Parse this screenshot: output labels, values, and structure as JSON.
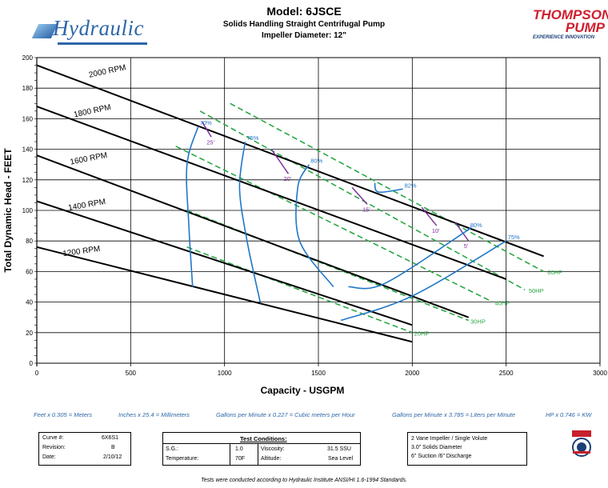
{
  "header": {
    "brand_left": "Hydraulic",
    "model": "Model:  6JSCE",
    "subtitle": "Solids Handling Straight Centrifugal Pump",
    "impeller": "Impeller Diameter: 12\"",
    "brand_right_line1": "THOMPSON",
    "brand_right_line2": "PUMP",
    "brand_right_tagline": "EXPERIENCE INNOVATION"
  },
  "conversions": [
    "Feet x 0.305 = Meters",
    "Inches x 25.4 = Millimeters",
    "Gallons per Minute x 0.227 = Cubic meters per Hour",
    "Gallons per Minute x 3.785 = Liters per Minute",
    "HP x 0.746 = KW"
  ],
  "curve_box": {
    "rows": [
      {
        "label": "Curve #:",
        "value": "6X6S1"
      },
      {
        "label": "Revision:",
        "value": "B"
      },
      {
        "label": "Date:",
        "value": "2/10/12"
      }
    ]
  },
  "test_conditions": {
    "title": "Test Conditions:",
    "sg_label": "S.G.:",
    "sg_value": "1.0",
    "viscosity_label": "Viscosity:",
    "viscosity_value": "31.5 SSU",
    "temp_label": "Temperature:",
    "temp_value": "70F",
    "altitude_label": "Altitude:",
    "altitude_value": "Sea Level"
  },
  "impeller_info": [
    "2 Vane Impeller / Single Volute",
    "3.0\" Solids Diameter",
    "6\" Suction /6\" Discharge"
  ],
  "footer": "Tests were conducted according to Hydraulic Institute ANSI/HI 1.6-1994 Standards.",
  "chart_data": {
    "type": "line",
    "xlabel": "Capacity - USGPM",
    "ylabel": "Total Dynamic Head - FEET",
    "xlim": [
      0,
      3000
    ],
    "ylim": [
      0,
      200
    ],
    "x_ticks": [
      0,
      500,
      1000,
      1500,
      2000,
      2500,
      3000
    ],
    "y_ticks": [
      0,
      20,
      40,
      60,
      80,
      100,
      120,
      140,
      160,
      180,
      200
    ],
    "grid": "horizontal",
    "colors": {
      "speed": "#000000",
      "efficiency": "#1f77c8",
      "hp": "#2aa845",
      "npsh": "#7b2d9e"
    },
    "speed_curves": [
      {
        "name": "2000 RPM",
        "points": [
          [
            0,
            195
          ],
          [
            2700,
            70
          ]
        ]
      },
      {
        "name": "1800 RPM",
        "points": [
          [
            0,
            168
          ],
          [
            2500,
            55
          ]
        ]
      },
      {
        "name": "1600 RPM",
        "points": [
          [
            0,
            136
          ],
          [
            2300,
            30
          ]
        ]
      },
      {
        "name": "1400 RPM",
        "points": [
          [
            0,
            106
          ],
          [
            2000,
            25
          ]
        ]
      },
      {
        "name": "1200 RPM",
        "points": [
          [
            0,
            76
          ],
          [
            2000,
            14
          ]
        ]
      }
    ],
    "efficiency_curves": [
      {
        "name": "70%",
        "points": [
          [
            830,
            50
          ],
          [
            810,
            90
          ],
          [
            800,
            130
          ],
          [
            860,
            155
          ]
        ]
      },
      {
        "name": "75%",
        "points": [
          [
            1190,
            40
          ],
          [
            1120,
            80
          ],
          [
            1080,
            115
          ],
          [
            1110,
            145
          ]
        ]
      },
      {
        "name": "80%",
        "points": [
          [
            1580,
            50
          ],
          [
            1400,
            80
          ],
          [
            1390,
            115
          ],
          [
            1450,
            130
          ]
        ]
      },
      {
        "name": "82%",
        "points": [
          [
            1800,
            118
          ],
          [
            1820,
            112
          ],
          [
            1950,
            114
          ]
        ]
      },
      {
        "name": "80%",
        "points": [
          [
            1660,
            50
          ],
          [
            1850,
            52
          ],
          [
            2270,
            85
          ],
          [
            2300,
            88
          ]
        ]
      },
      {
        "name": "75%",
        "points": [
          [
            1620,
            28
          ],
          [
            2000,
            44
          ],
          [
            2500,
            80
          ]
        ]
      }
    ],
    "hp_curves": [
      {
        "name": "60HP",
        "points": [
          [
            1030,
            170
          ],
          [
            2700,
            60
          ]
        ]
      },
      {
        "name": "50HP",
        "points": [
          [
            870,
            165
          ],
          [
            2600,
            48
          ]
        ]
      },
      {
        "name": "40HP",
        "points": [
          [
            740,
            142
          ],
          [
            2430,
            40
          ]
        ]
      },
      {
        "name": "30HP",
        "points": [
          [
            800,
            100
          ],
          [
            2300,
            28
          ]
        ]
      },
      {
        "name": "20HP",
        "points": [
          [
            800,
            76
          ],
          [
            2000,
            20
          ]
        ]
      }
    ],
    "npsh_curves": [
      {
        "name": "25'",
        "points": [
          [
            880,
            158
          ],
          [
            930,
            148
          ]
        ]
      },
      {
        "name": "20'",
        "points": [
          [
            1250,
            140
          ],
          [
            1340,
            124
          ]
        ]
      },
      {
        "name": "15'",
        "points": [
          [
            1680,
            115
          ],
          [
            1760,
            104
          ]
        ]
      },
      {
        "name": "10'",
        "points": [
          [
            2050,
            102
          ],
          [
            2130,
            90
          ]
        ]
      },
      {
        "name": "5'",
        "points": [
          [
            2230,
            92
          ],
          [
            2300,
            80
          ]
        ]
      }
    ]
  }
}
